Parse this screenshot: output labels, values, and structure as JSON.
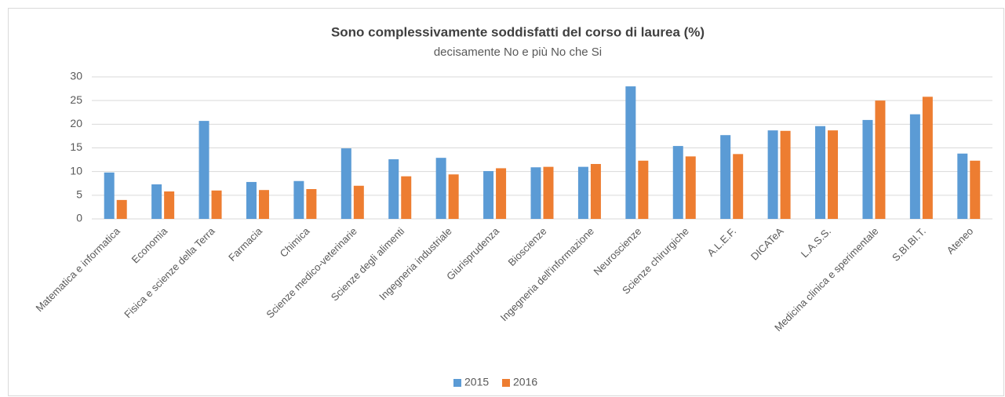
{
  "chart_data": {
    "type": "bar",
    "title": "Sono complessivamente soddisfatti del corso di laurea (%)",
    "subtitle": "decisamente No e più No che Si",
    "categories": [
      "Matematica e informatica",
      "Economia",
      "Fisica e scienze della Terra",
      "Farmacia",
      "Chimica",
      "Scienze medico-veterinarie",
      "Scienze degli alimenti",
      "Ingegneria industriale",
      "Giurisprudenza",
      "Bioscienze",
      "Ingegneria dell'informazione",
      "Neuroscienze",
      "Scienze chirurgiche",
      "A.L.E.F.",
      "DICATeA",
      "L.A.S.S.",
      "Medicina clinica e sperimentale",
      "S.BI.BI.T.",
      "Ateneo"
    ],
    "series": [
      {
        "name": "2015",
        "color": "#5b9bd5",
        "values": [
          9.8,
          7.3,
          20.7,
          7.8,
          8.0,
          14.9,
          12.6,
          12.9,
          10.1,
          10.9,
          11.0,
          28.0,
          15.4,
          17.7,
          18.7,
          19.6,
          20.9,
          22.1,
          13.8
        ]
      },
      {
        "name": "2016",
        "color": "#ed7d31",
        "values": [
          4.0,
          5.8,
          6.0,
          6.1,
          6.3,
          7.0,
          9.0,
          9.4,
          10.7,
          11.0,
          11.6,
          12.3,
          13.2,
          13.7,
          18.6,
          18.7,
          25.0,
          25.8,
          12.3
        ]
      }
    ],
    "ylim": [
      0,
      30
    ],
    "yticks": [
      0,
      5,
      10,
      15,
      20,
      25,
      30
    ],
    "grid": true,
    "legend": "bottom"
  }
}
